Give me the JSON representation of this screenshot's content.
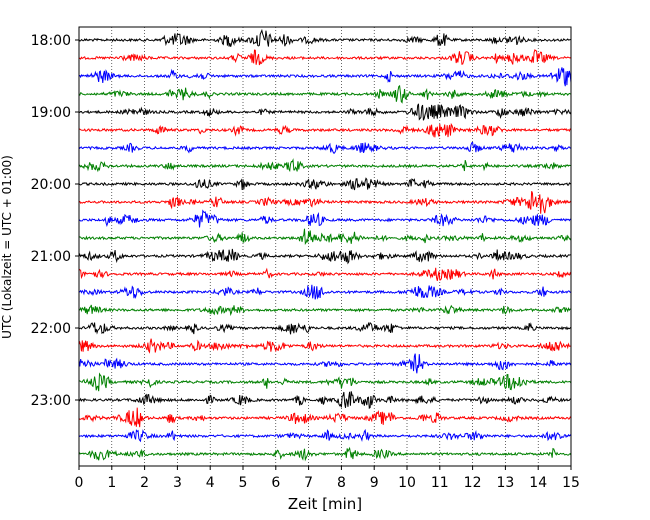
{
  "chart_data": {
    "type": "line",
    "title": "",
    "xlabel": "Zeit  [min]",
    "ylabel": "UTC (Lokalzeit = UTC + 01:00)",
    "xlim": [
      0,
      15
    ],
    "x_ticks": [
      0,
      1,
      2,
      3,
      4,
      5,
      6,
      7,
      8,
      9,
      10,
      11,
      12,
      13,
      14,
      15
    ],
    "x_tick_labels": [
      "0",
      "1",
      "2",
      "3",
      "4",
      "5",
      "6",
      "7",
      "8",
      "9",
      "10",
      "11",
      "12",
      "13",
      "14",
      "15"
    ],
    "y_tick_labels": [
      "18:00",
      "19:00",
      "20:00",
      "21:00",
      "22:00",
      "23:00"
    ],
    "grid_x": true,
    "minutes_per_row": 15,
    "color_cycle": [
      "#000000",
      "#ff0000",
      "#0000ff",
      "#008000"
    ],
    "series": [
      {
        "start": "18:00",
        "color": "#000000"
      },
      {
        "start": "18:15",
        "color": "#ff0000"
      },
      {
        "start": "18:30",
        "color": "#0000ff"
      },
      {
        "start": "18:45",
        "color": "#008000"
      },
      {
        "start": "19:00",
        "color": "#000000"
      },
      {
        "start": "19:15",
        "color": "#ff0000"
      },
      {
        "start": "19:30",
        "color": "#0000ff"
      },
      {
        "start": "19:45",
        "color": "#008000"
      },
      {
        "start": "20:00",
        "color": "#000000"
      },
      {
        "start": "20:15",
        "color": "#ff0000"
      },
      {
        "start": "20:30",
        "color": "#0000ff"
      },
      {
        "start": "20:45",
        "color": "#008000"
      },
      {
        "start": "21:00",
        "color": "#000000"
      },
      {
        "start": "21:15",
        "color": "#ff0000"
      },
      {
        "start": "21:30",
        "color": "#0000ff"
      },
      {
        "start": "21:45",
        "color": "#008000"
      },
      {
        "start": "22:00",
        "color": "#000000"
      },
      {
        "start": "22:15",
        "color": "#ff0000"
      },
      {
        "start": "22:30",
        "color": "#0000ff"
      },
      {
        "start": "22:45",
        "color": "#008000"
      },
      {
        "start": "23:00",
        "color": "#000000"
      },
      {
        "start": "23:15",
        "color": "#ff0000"
      },
      {
        "start": "23:30",
        "color": "#0000ff"
      },
      {
        "start": "23:45",
        "color": "#008000"
      }
    ]
  }
}
